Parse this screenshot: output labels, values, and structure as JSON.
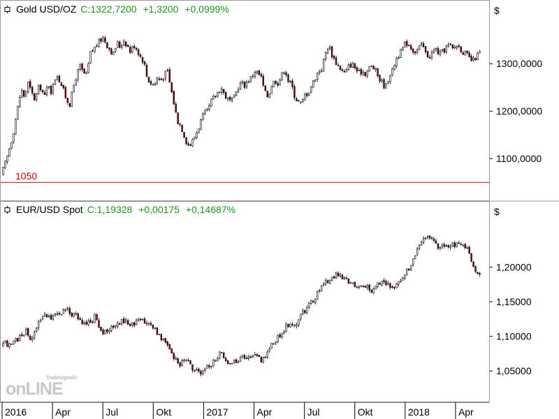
{
  "theme": {
    "background": "#ffffff",
    "frame": "#999999",
    "candle_outline": "#000000",
    "bear_fill": "#8b0000",
    "bull_fill": "#ffffff",
    "quote_color": "#1a9a1a",
    "level_color": "#cc0000"
  },
  "watermark": {
    "small": "Tradesignal®",
    "big": "onLINE"
  },
  "x_axis": {
    "labels": [
      {
        "text": "2016",
        "m": 0
      },
      {
        "text": "Apr",
        "m": 3
      },
      {
        "text": "Jul",
        "m": 6
      },
      {
        "text": "Okt",
        "m": 9
      },
      {
        "text": "2017",
        "m": 12
      },
      {
        "text": "Apr",
        "m": 15
      },
      {
        "text": "Jul",
        "m": 18
      },
      {
        "text": "Okt",
        "m": 21
      },
      {
        "text": "2018",
        "m": 24
      },
      {
        "text": "Apr",
        "m": 27
      }
    ]
  },
  "chart_data": [
    {
      "type": "candlestick",
      "symbol": "Gold USD/OZ",
      "quote": {
        "close": "C:1322,7200",
        "change": "+1,3200",
        "pct": "+0,0999%"
      },
      "currency": "$",
      "y_ticks": [
        {
          "v": 1100,
          "t": "1100,0000"
        },
        {
          "v": 1200,
          "t": "1200,0000"
        },
        {
          "v": 1300,
          "t": "1300,0000"
        }
      ],
      "ylim": [
        1040,
        1390
      ],
      "reference_line": {
        "value": 1050,
        "label": "1050"
      },
      "x_months": [
        0,
        28.5
      ],
      "series": [
        [
          0,
          1065
        ],
        [
          0.3,
          1095
        ],
        [
          0.7,
          1150
        ],
        [
          1.0,
          1210
        ],
        [
          1.2,
          1245
        ],
        [
          1.4,
          1230
        ],
        [
          1.6,
          1260
        ],
        [
          1.8,
          1240
        ],
        [
          2.0,
          1225
        ],
        [
          2.3,
          1255
        ],
        [
          2.6,
          1230
        ],
        [
          2.8,
          1260
        ],
        [
          3.0,
          1240
        ],
        [
          3.3,
          1280
        ],
        [
          3.6,
          1255
        ],
        [
          3.9,
          1225
        ],
        [
          4.1,
          1215
        ],
        [
          4.4,
          1265
        ],
        [
          4.7,
          1295
        ],
        [
          4.9,
          1280
        ],
        [
          5.1,
          1275
        ],
        [
          5.3,
          1320
        ],
        [
          5.5,
          1330
        ],
        [
          5.7,
          1340
        ],
        [
          5.9,
          1350
        ],
        [
          6.1,
          1355
        ],
        [
          6.3,
          1340
        ],
        [
          6.5,
          1330
        ],
        [
          6.7,
          1320
        ],
        [
          6.9,
          1345
        ],
        [
          7.1,
          1335
        ],
        [
          7.3,
          1350
        ],
        [
          7.5,
          1340
        ],
        [
          7.7,
          1325
        ],
        [
          7.9,
          1340
        ],
        [
          8.1,
          1330
        ],
        [
          8.3,
          1315
        ],
        [
          8.5,
          1305
        ],
        [
          8.7,
          1270
        ],
        [
          8.9,
          1260
        ],
        [
          9.1,
          1255
        ],
        [
          9.3,
          1270
        ],
        [
          9.5,
          1265
        ],
        [
          9.7,
          1275
        ],
        [
          9.9,
          1285
        ],
        [
          10.1,
          1250
        ],
        [
          10.3,
          1215
        ],
        [
          10.5,
          1180
        ],
        [
          10.7,
          1170
        ],
        [
          10.9,
          1150
        ],
        [
          11.1,
          1130
        ],
        [
          11.3,
          1130
        ],
        [
          11.5,
          1145
        ],
        [
          11.7,
          1160
        ],
        [
          11.9,
          1180
        ],
        [
          12.1,
          1195
        ],
        [
          12.3,
          1200
        ],
        [
          12.5,
          1220
        ],
        [
          12.7,
          1230
        ],
        [
          12.9,
          1240
        ],
        [
          13.1,
          1250
        ],
        [
          13.3,
          1235
        ],
        [
          13.5,
          1225
        ],
        [
          13.7,
          1220
        ],
        [
          13.9,
          1230
        ],
        [
          14.1,
          1250
        ],
        [
          14.3,
          1260
        ],
        [
          14.5,
          1255
        ],
        [
          14.7,
          1265
        ],
        [
          14.9,
          1270
        ],
        [
          15.1,
          1285
        ],
        [
          15.3,
          1280
        ],
        [
          15.5,
          1270
        ],
        [
          15.7,
          1240
        ],
        [
          15.9,
          1230
        ],
        [
          16.1,
          1255
        ],
        [
          16.3,
          1265
        ],
        [
          16.5,
          1260
        ],
        [
          16.7,
          1275
        ],
        [
          16.9,
          1290
        ],
        [
          17.1,
          1265
        ],
        [
          17.3,
          1255
        ],
        [
          17.5,
          1230
        ],
        [
          17.7,
          1220
        ],
        [
          17.9,
          1215
        ],
        [
          18.1,
          1235
        ],
        [
          18.3,
          1240
        ],
        [
          18.5,
          1255
        ],
        [
          18.7,
          1270
        ],
        [
          18.9,
          1285
        ],
        [
          19.1,
          1290
        ],
        [
          19.3,
          1320
        ],
        [
          19.5,
          1340
        ],
        [
          19.7,
          1320
        ],
        [
          19.9,
          1305
        ],
        [
          20.1,
          1295
        ],
        [
          20.3,
          1285
        ],
        [
          20.5,
          1280
        ],
        [
          20.7,
          1295
        ],
        [
          20.9,
          1300
        ],
        [
          21.1,
          1290
        ],
        [
          21.3,
          1280
        ],
        [
          21.5,
          1285
        ],
        [
          21.7,
          1280
        ],
        [
          21.9,
          1290
        ],
        [
          22.1,
          1295
        ],
        [
          22.3,
          1285
        ],
        [
          22.5,
          1270
        ],
        [
          22.7,
          1260
        ],
        [
          22.9,
          1250
        ],
        [
          23.1,
          1275
        ],
        [
          23.3,
          1285
        ],
        [
          23.5,
          1310
        ],
        [
          23.7,
          1320
        ],
        [
          23.9,
          1330
        ],
        [
          24.1,
          1345
        ],
        [
          24.3,
          1340
        ],
        [
          24.5,
          1330
        ],
        [
          24.7,
          1325
        ],
        [
          24.9,
          1335
        ],
        [
          25.1,
          1340
        ],
        [
          25.3,
          1320
        ],
        [
          25.5,
          1315
        ],
        [
          25.7,
          1325
        ],
        [
          25.9,
          1330
        ],
        [
          26.1,
          1320
        ],
        [
          26.3,
          1325
        ],
        [
          26.5,
          1335
        ],
        [
          26.7,
          1340
        ],
        [
          26.9,
          1330
        ],
        [
          27.1,
          1340
        ],
        [
          27.3,
          1335
        ],
        [
          27.5,
          1325
        ],
        [
          27.7,
          1320
        ],
        [
          27.9,
          1310
        ],
        [
          28.1,
          1305
        ],
        [
          28.3,
          1315
        ],
        [
          28.5,
          1322.72
        ]
      ]
    },
    {
      "type": "candlestick",
      "symbol": "EUR/USD Spot",
      "quote": {
        "close": "C:1,19328",
        "change": "+0,00175",
        "pct": "+0,14687%"
      },
      "currency": "$",
      "y_ticks": [
        {
          "v": 1.05,
          "t": "1,05000"
        },
        {
          "v": 1.1,
          "t": "1,10000"
        },
        {
          "v": 1.15,
          "t": "1,15000"
        },
        {
          "v": 1.2,
          "t": "1,20000"
        }
      ],
      "ylim": [
        1.025,
        1.265
      ],
      "x_months": [
        0,
        28.5
      ],
      "series": [
        [
          0,
          1.085
        ],
        [
          0.3,
          1.09
        ],
        [
          0.6,
          1.085
        ],
        [
          0.9,
          1.095
        ],
        [
          1.2,
          1.1
        ],
        [
          1.5,
          1.11
        ],
        [
          1.8,
          1.09
        ],
        [
          2.0,
          1.11
        ],
        [
          2.3,
          1.12
        ],
        [
          2.6,
          1.13
        ],
        [
          2.9,
          1.125
        ],
        [
          3.2,
          1.135
        ],
        [
          3.5,
          1.13
        ],
        [
          3.8,
          1.14
        ],
        [
          4.1,
          1.135
        ],
        [
          4.4,
          1.13
        ],
        [
          4.7,
          1.125
        ],
        [
          5.0,
          1.115
        ],
        [
          5.3,
          1.12
        ],
        [
          5.6,
          1.13
        ],
        [
          5.9,
          1.11
        ],
        [
          6.2,
          1.105
        ],
        [
          6.5,
          1.11
        ],
        [
          6.8,
          1.115
        ],
        [
          7.1,
          1.12
        ],
        [
          7.4,
          1.125
        ],
        [
          7.7,
          1.115
        ],
        [
          8.0,
          1.12
        ],
        [
          8.3,
          1.125
        ],
        [
          8.6,
          1.12
        ],
        [
          8.9,
          1.115
        ],
        [
          9.2,
          1.11
        ],
        [
          9.5,
          1.1
        ],
        [
          9.8,
          1.09
        ],
        [
          10.1,
          1.08
        ],
        [
          10.4,
          1.065
        ],
        [
          10.7,
          1.06
        ],
        [
          11.0,
          1.07
        ],
        [
          11.3,
          1.055
        ],
        [
          11.6,
          1.05
        ],
        [
          11.9,
          1.045
        ],
        [
          12.2,
          1.055
        ],
        [
          12.5,
          1.06
        ],
        [
          12.8,
          1.07
        ],
        [
          13.1,
          1.075
        ],
        [
          13.4,
          1.065
        ],
        [
          13.7,
          1.06
        ],
        [
          14.0,
          1.065
        ],
        [
          14.3,
          1.07
        ],
        [
          14.6,
          1.065
        ],
        [
          14.9,
          1.075
        ],
        [
          15.2,
          1.07
        ],
        [
          15.5,
          1.065
        ],
        [
          15.8,
          1.075
        ],
        [
          16.1,
          1.09
        ],
        [
          16.4,
          1.095
        ],
        [
          16.7,
          1.105
        ],
        [
          17.0,
          1.115
        ],
        [
          17.3,
          1.12
        ],
        [
          17.6,
          1.115
        ],
        [
          17.9,
          1.135
        ],
        [
          18.2,
          1.14
        ],
        [
          18.5,
          1.15
        ],
        [
          18.8,
          1.16
        ],
        [
          19.1,
          1.17
        ],
        [
          19.4,
          1.18
        ],
        [
          19.7,
          1.185
        ],
        [
          20.0,
          1.19
        ],
        [
          20.3,
          1.185
        ],
        [
          20.6,
          1.18
        ],
        [
          20.9,
          1.175
        ],
        [
          21.2,
          1.17
        ],
        [
          21.5,
          1.175
        ],
        [
          21.8,
          1.17
        ],
        [
          22.1,
          1.165
        ],
        [
          22.4,
          1.175
        ],
        [
          22.7,
          1.18
        ],
        [
          23.0,
          1.175
        ],
        [
          23.3,
          1.17
        ],
        [
          23.6,
          1.175
        ],
        [
          23.9,
          1.185
        ],
        [
          24.2,
          1.195
        ],
        [
          24.5,
          1.21
        ],
        [
          24.8,
          1.225
        ],
        [
          25.1,
          1.235
        ],
        [
          25.4,
          1.245
        ],
        [
          25.7,
          1.24
        ],
        [
          26.0,
          1.23
        ],
        [
          26.3,
          1.235
        ],
        [
          26.6,
          1.23
        ],
        [
          26.9,
          1.235
        ],
        [
          27.2,
          1.23
        ],
        [
          27.5,
          1.235
        ],
        [
          27.8,
          1.225
        ],
        [
          28.1,
          1.205
        ],
        [
          28.3,
          1.19
        ],
        [
          28.5,
          1.19328
        ]
      ]
    }
  ]
}
